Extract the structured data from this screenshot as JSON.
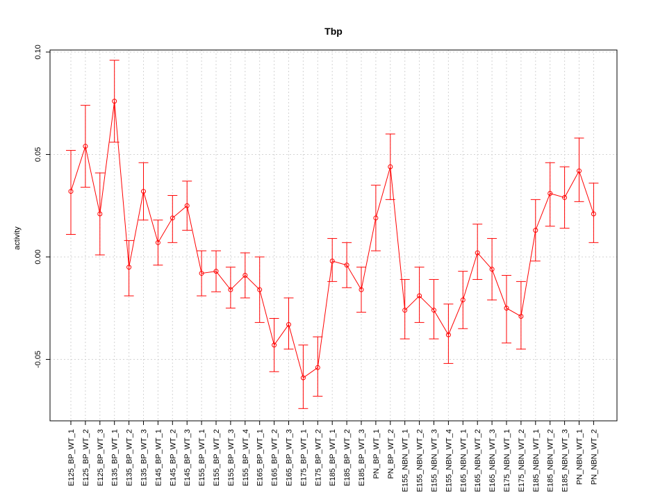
{
  "chart_data": {
    "type": "line",
    "title": "Tbp",
    "xlabel": "",
    "ylabel": "activity",
    "ylim": [
      -0.08,
      0.101
    ],
    "yticks": [
      -0.05,
      0.0,
      0.05,
      0.1
    ],
    "ytick_labels": [
      "-0.05",
      "0.00",
      "0.05",
      "0.10"
    ],
    "grid": true,
    "legend": "none",
    "colors": {
      "series": "#ff0000",
      "grid": "#d3d3d3",
      "axis": "#000000"
    },
    "categories": [
      "E125_BP_WT_1",
      "E125_BP_WT_2",
      "E125_BP_WT_3",
      "E135_BP_WT_1",
      "E135_BP_WT_2",
      "E135_BP_WT_3",
      "E145_BP_WT_1",
      "E145_BP_WT_2",
      "E145_BP_WT_3",
      "E155_BP_WT_1",
      "E155_BP_WT_2",
      "E155_BP_WT_3",
      "E155_BP_WT_4",
      "E165_BP_WT_1",
      "E165_BP_WT_2",
      "E165_BP_WT_3",
      "E175_BP_WT_1",
      "E175_BP_WT_2",
      "E185_BP_WT_1",
      "E185_BP_WT_2",
      "E185_BP_WT_3",
      "PN_BP_WT_1",
      "PN_BP_WT_2",
      "E155_NBN_WT_1",
      "E155_NBN_WT_2",
      "E155_NBN_WT_3",
      "E155_NBN_WT_4",
      "E165_NBN_WT_1",
      "E165_NBN_WT_2",
      "E165_NBN_WT_3",
      "E175_NBN_WT_1",
      "E175_NBN_WT_2",
      "E185_NBN_WT_1",
      "E185_NBN_WT_2",
      "E185_NBN_WT_3",
      "PN_NBN_WT_1",
      "PN_NBN_WT_2"
    ],
    "values": [
      0.032,
      0.054,
      0.021,
      0.076,
      -0.005,
      0.032,
      0.007,
      0.019,
      0.025,
      -0.008,
      -0.007,
      -0.016,
      -0.009,
      -0.016,
      -0.043,
      -0.033,
      -0.059,
      -0.054,
      -0.002,
      -0.004,
      -0.016,
      0.019,
      0.044,
      -0.026,
      -0.019,
      -0.026,
      -0.038,
      -0.021,
      0.002,
      -0.006,
      -0.025,
      -0.029,
      0.013,
      0.031,
      0.029,
      0.042,
      0.021
    ],
    "lower": [
      0.011,
      0.034,
      0.001,
      0.056,
      -0.019,
      0.018,
      -0.004,
      0.007,
      0.013,
      -0.019,
      -0.017,
      -0.025,
      -0.02,
      -0.032,
      -0.056,
      -0.045,
      -0.074,
      -0.068,
      -0.012,
      -0.015,
      -0.027,
      0.003,
      0.028,
      -0.04,
      -0.032,
      -0.04,
      -0.052,
      -0.035,
      -0.011,
      -0.021,
      -0.042,
      -0.045,
      -0.002,
      0.015,
      0.014,
      0.027,
      0.007
    ],
    "upper": [
      0.052,
      0.074,
      0.041,
      0.096,
      0.008,
      0.046,
      0.018,
      0.03,
      0.037,
      0.003,
      0.003,
      -0.005,
      0.002,
      0.0,
      -0.03,
      -0.02,
      -0.043,
      -0.039,
      0.009,
      0.007,
      -0.005,
      0.035,
      0.06,
      -0.011,
      -0.005,
      -0.011,
      -0.023,
      -0.007,
      0.016,
      0.009,
      -0.009,
      -0.012,
      0.028,
      0.046,
      0.044,
      0.058,
      0.036
    ]
  }
}
